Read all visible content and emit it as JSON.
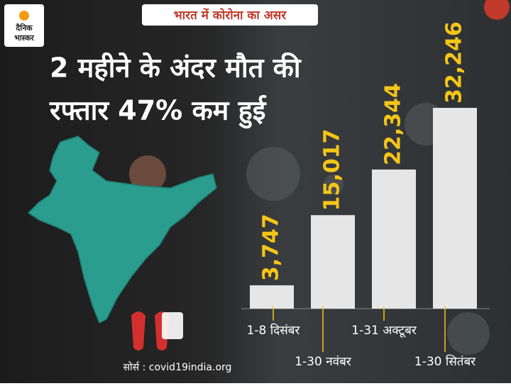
{
  "chart_data": {
    "type": "bar",
    "tag": "भारत में कोरोना का असर",
    "brand": [
      "दैनिक",
      "भास्कर"
    ],
    "title_lines": [
      "2 महीने के अंदर मौत की",
      "रफ्तार 47% कम हुई"
    ],
    "categories": [
      "1-8 दिसंबर",
      "1-30 नवंबर",
      "1-31 अक्टूबर",
      "1-30 सितंबर"
    ],
    "values": [
      3747,
      15017,
      22344,
      32246
    ],
    "value_labels": [
      "3,747",
      "15,017",
      "22,344",
      "32,246"
    ],
    "color": "#e6e6e6",
    "label_color": "#f5c518",
    "source": "सोर्स : covid19india.org"
  }
}
